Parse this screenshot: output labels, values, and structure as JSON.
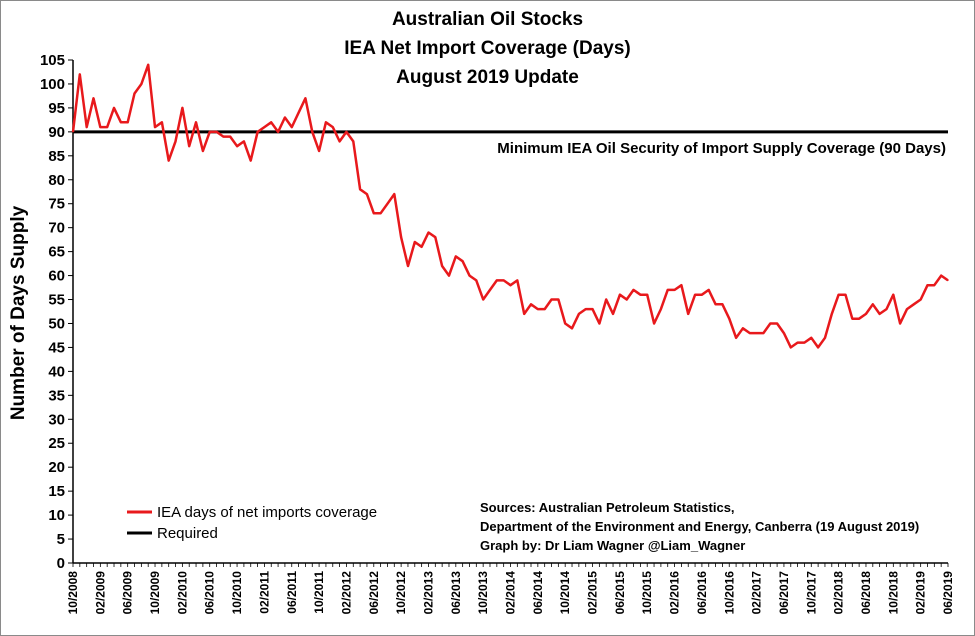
{
  "chart_data": {
    "type": "line",
    "title": [
      "Australian Oil Stocks",
      "IEA Net Import Coverage (Days)",
      "August 2019 Update"
    ],
    "ylabel": "Number of Days Supply",
    "xlabel": "",
    "ylim": [
      0,
      105
    ],
    "ytick_step": 5,
    "grid": false,
    "xtick_labels": [
      "10/2008",
      "02/2009",
      "06/2009",
      "10/2009",
      "02/2010",
      "06/2010",
      "10/2010",
      "02/2011",
      "06/2011",
      "10/2011",
      "02/2012",
      "06/2012",
      "10/2012",
      "02/2013",
      "06/2013",
      "10/2013",
      "02/2014",
      "06/2014",
      "10/2014",
      "02/2015",
      "06/2015",
      "10/2015",
      "02/2016",
      "06/2016",
      "10/2016",
      "02/2017",
      "06/2017",
      "10/2017",
      "02/2018",
      "06/2018",
      "10/2018",
      "02/2019",
      "06/2019"
    ],
    "series": [
      {
        "name": "IEA days of net imports coverage",
        "color": "#e8191c",
        "values": [
          90,
          102,
          91,
          97,
          91,
          91,
          95,
          92,
          92,
          98,
          100,
          104,
          91,
          92,
          84,
          88,
          95,
          87,
          92,
          86,
          90,
          90,
          89,
          89,
          87,
          88,
          84,
          90,
          91,
          92,
          90,
          93,
          91,
          94,
          97,
          90,
          86,
          92,
          91,
          88,
          90,
          88,
          78,
          77,
          73,
          73,
          75,
          77,
          68,
          62,
          67,
          66,
          69,
          68,
          62,
          60,
          64,
          63,
          60,
          59,
          55,
          57,
          59,
          59,
          58,
          59,
          52,
          54,
          53,
          53,
          55,
          55,
          50,
          49,
          52,
          53,
          53,
          50,
          55,
          52,
          56,
          55,
          57,
          56,
          56,
          50,
          53,
          57,
          57,
          58,
          52,
          56,
          56,
          57,
          54,
          54,
          51,
          47,
          49,
          48,
          48,
          48,
          50,
          50,
          48,
          45,
          46,
          46,
          47,
          45,
          47,
          52,
          56,
          56,
          51,
          51,
          52,
          54,
          52,
          53,
          56,
          50,
          53,
          54,
          55,
          58,
          58,
          60,
          59
        ]
      },
      {
        "name": "Required",
        "color": "#000000",
        "constant": 90
      }
    ],
    "annotation": "Minimum IEA Oil Security of Import Supply Coverage (90 Days)",
    "sources": [
      "Sources: Australian Petroleum Statistics,",
      "Department of the Environment and Energy, Canberra (19 August 2019)",
      "Graph by: Dr Liam Wagner @Liam_Wagner"
    ]
  }
}
